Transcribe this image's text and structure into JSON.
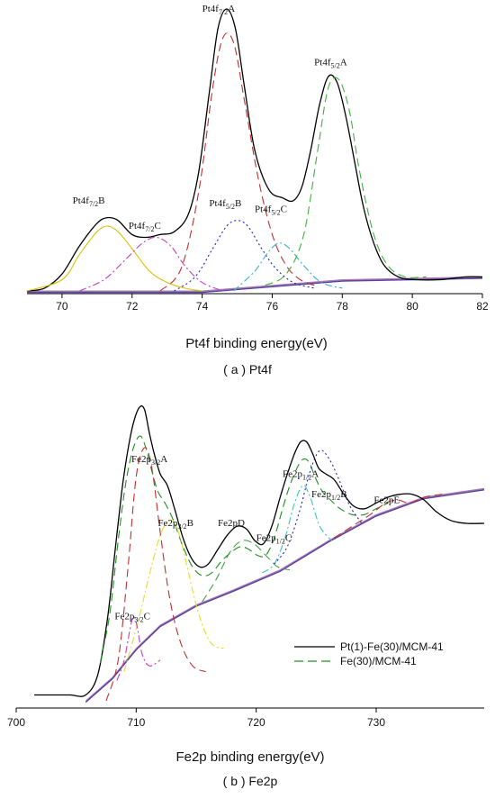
{
  "chart_data": [
    {
      "id": "a",
      "type": "line",
      "title": "",
      "caption": "( a ) Pt4f",
      "xlabel": "Pt4f binding energy(eV)",
      "ylabel": "",
      "xlim": [
        69,
        82
      ],
      "ylim": [
        0,
        1
      ],
      "xticks": [
        "70",
        "72",
        "74",
        "76",
        "78",
        "80",
        "82"
      ],
      "xtick_values": [
        70,
        72,
        74,
        76,
        78,
        80,
        82
      ],
      "grid": false,
      "background": [
        [
          69,
          0.0
        ],
        [
          74,
          0.0
        ],
        [
          76,
          0.02
        ],
        [
          78,
          0.04
        ],
        [
          82,
          0.05
        ]
      ],
      "series": [
        {
          "style": "solid",
          "color": "#000000",
          "x": [
            69.0,
            69.5,
            70.0,
            70.5,
            71.0,
            71.3,
            71.6,
            72.0,
            72.4,
            72.8,
            73.2,
            73.6,
            73.9,
            74.2,
            74.45,
            74.7,
            74.95,
            75.2,
            75.5,
            75.9,
            76.3,
            76.6,
            76.85,
            77.1,
            77.35,
            77.6,
            77.85,
            78.1,
            78.35,
            78.6,
            78.9,
            79.2,
            79.6,
            80.1,
            80.8,
            81.5,
            82.0
          ],
          "values": [
            0.0,
            0.01,
            0.06,
            0.16,
            0.24,
            0.26,
            0.25,
            0.2,
            0.19,
            0.2,
            0.21,
            0.27,
            0.42,
            0.7,
            0.93,
            1.0,
            0.93,
            0.73,
            0.5,
            0.36,
            0.33,
            0.32,
            0.37,
            0.5,
            0.66,
            0.76,
            0.74,
            0.62,
            0.46,
            0.3,
            0.17,
            0.09,
            0.05,
            0.04,
            0.04,
            0.05,
            0.05
          ]
        },
        {
          "style": "solid",
          "color": "#d6c200",
          "x": [
            69.0,
            70.0,
            70.5,
            71.0,
            71.3,
            71.6,
            72.0,
            72.5,
            73.0,
            73.5,
            74.0
          ],
          "values": [
            0.0,
            0.04,
            0.13,
            0.21,
            0.23,
            0.21,
            0.15,
            0.07,
            0.03,
            0.01,
            0.0
          ]
        },
        {
          "style": "dashdot",
          "color": "#c040c0",
          "x": [
            70.5,
            71.2,
            71.8,
            72.3,
            72.7,
            73.1,
            73.5,
            74.0,
            74.6
          ],
          "values": [
            0.0,
            0.04,
            0.11,
            0.17,
            0.19,
            0.16,
            0.09,
            0.03,
            0.0
          ]
        },
        {
          "style": "dashed",
          "color": "#c03030",
          "x": [
            72.8,
            73.4,
            73.9,
            74.3,
            74.6,
            74.9,
            75.2,
            75.6,
            76.0,
            76.4,
            76.8,
            77.2
          ],
          "values": [
            0.0,
            0.08,
            0.35,
            0.72,
            0.9,
            0.88,
            0.68,
            0.4,
            0.2,
            0.09,
            0.04,
            0.02
          ]
        },
        {
          "style": "dotted",
          "color": "#2020c0",
          "x": [
            73.2,
            73.8,
            74.3,
            74.7,
            75.0,
            75.3,
            75.7,
            76.1,
            76.6,
            77.2
          ],
          "values": [
            0.0,
            0.05,
            0.15,
            0.23,
            0.25,
            0.23,
            0.15,
            0.08,
            0.03,
            0.01
          ]
        },
        {
          "style": "dashdot",
          "color": "#40b0c0",
          "x": [
            74.9,
            75.5,
            75.9,
            76.2,
            76.5,
            76.9,
            77.4,
            78.0
          ],
          "values": [
            0.0,
            0.07,
            0.14,
            0.17,
            0.15,
            0.09,
            0.03,
            0.01
          ]
        },
        {
          "style": "dashed",
          "color": "#40b040",
          "x": [
            75.8,
            76.4,
            76.9,
            77.3,
            77.6,
            77.9,
            78.2,
            78.5,
            78.9,
            79.3,
            79.8,
            80.4
          ],
          "values": [
            0.02,
            0.06,
            0.2,
            0.5,
            0.72,
            0.75,
            0.64,
            0.42,
            0.2,
            0.09,
            0.05,
            0.05
          ]
        }
      ],
      "peak_labels": [
        {
          "base": "Pt4f",
          "sub": "7/2",
          "suffix": "A",
          "x": 74.0,
          "y": 0.99
        },
        {
          "base": "Pt4f",
          "sub": "5/2",
          "suffix": "A",
          "x": 77.2,
          "y": 0.8
        },
        {
          "base": "Pt4f",
          "sub": "7/2",
          "suffix": "B",
          "x": 70.3,
          "y": 0.31
        },
        {
          "base": "Pt4f",
          "sub": "7/2",
          "suffix": "C",
          "x": 71.9,
          "y": 0.22
        },
        {
          "base": "Pt4f",
          "sub": "5/2",
          "suffix": "B",
          "x": 74.2,
          "y": 0.3
        },
        {
          "base": "Pt4f",
          "sub": "5/2",
          "suffix": "C",
          "x": 75.5,
          "y": 0.28
        }
      ]
    },
    {
      "id": "b",
      "type": "line",
      "title": "",
      "caption": "( b ) Fe2p",
      "xlabel": "Fe2p binding energy(eV)",
      "ylabel": "",
      "xlim": [
        700,
        739
      ],
      "ylim": [
        0,
        1
      ],
      "xticks": [
        "700",
        "710",
        "720",
        "730"
      ],
      "xtick_values": [
        700,
        710,
        720,
        730
      ],
      "grid": false,
      "legend_position": "right",
      "legend": [
        {
          "name": "Pt(1)-Fe(30)/MCM-41",
          "style": "solid",
          "color": "#000000"
        },
        {
          "name": "Fe(30)/MCM-41",
          "style": "dashed",
          "color": "#209020"
        }
      ],
      "background": [
        [
          705.8,
          0.0
        ],
        [
          708,
          0.08
        ],
        [
          710,
          0.18
        ],
        [
          712,
          0.26
        ],
        [
          715,
          0.33
        ],
        [
          718,
          0.38
        ],
        [
          722,
          0.45
        ],
        [
          726,
          0.55
        ],
        [
          730,
          0.64
        ],
        [
          734,
          0.7
        ],
        [
          739,
          0.73
        ]
      ],
      "series": [
        {
          "style": "solid",
          "color": "#000000",
          "x": [
            701.5,
            703.0,
            704.5,
            705.8,
            706.8,
            707.6,
            708.2,
            708.8,
            709.3,
            709.8,
            710.3,
            710.7,
            711.1,
            711.5,
            712.0,
            712.6,
            713.2,
            713.9,
            714.6,
            715.3,
            716.0,
            716.8,
            717.6,
            718.4,
            719.2,
            719.9,
            720.6,
            721.3,
            722.0,
            722.6,
            723.2,
            723.7,
            724.2,
            724.7,
            725.2,
            725.8,
            726.5,
            727.3,
            728.1,
            729.0,
            730.0,
            731.0,
            732.0,
            733.0,
            734.0,
            735.0,
            736.2,
            737.5,
            739.0
          ],
          "values": [
            0.02,
            0.02,
            0.02,
            0.02,
            0.09,
            0.28,
            0.5,
            0.72,
            0.86,
            0.96,
            1.01,
            1.0,
            0.92,
            0.85,
            0.78,
            0.74,
            0.66,
            0.56,
            0.49,
            0.46,
            0.47,
            0.52,
            0.57,
            0.6,
            0.59,
            0.55,
            0.54,
            0.6,
            0.7,
            0.78,
            0.85,
            0.89,
            0.89,
            0.85,
            0.8,
            0.78,
            0.76,
            0.71,
            0.67,
            0.66,
            0.68,
            0.7,
            0.71,
            0.71,
            0.69,
            0.65,
            0.62,
            0.61,
            0.61
          ]
        },
        {
          "style": "dashed",
          "color": "#209020",
          "x": [
            707.0,
            707.8,
            708.5,
            709.1,
            709.7,
            710.3,
            710.8,
            711.3,
            711.8,
            712.4,
            713.1,
            713.9,
            714.7,
            715.5,
            716.3,
            717.1,
            717.9,
            718.7,
            719.4,
            720.1,
            720.8,
            721.5,
            722.2,
            722.8,
            723.4,
            723.9,
            724.4,
            724.9,
            725.5,
            726.2,
            727.0,
            728.0,
            729.0,
            730.0,
            731.0
          ],
          "values": [
            0.13,
            0.3,
            0.55,
            0.74,
            0.86,
            0.91,
            0.87,
            0.79,
            0.72,
            0.68,
            0.62,
            0.53,
            0.46,
            0.43,
            0.44,
            0.48,
            0.51,
            0.53,
            0.52,
            0.5,
            0.5,
            0.56,
            0.66,
            0.74,
            0.8,
            0.83,
            0.82,
            0.77,
            0.72,
            0.69,
            0.66,
            0.64,
            0.64,
            0.66,
            0.68
          ]
        },
        {
          "style": "dashed",
          "color": "#c03030",
          "x": [
            707.5,
            708.5,
            709.3,
            710.0,
            710.7,
            711.3,
            712.0,
            712.8,
            713.7,
            714.7,
            715.8
          ],
          "values": [
            0.0,
            0.14,
            0.45,
            0.77,
            0.87,
            0.8,
            0.58,
            0.35,
            0.2,
            0.12,
            0.1
          ]
        },
        {
          "style": "dashdot",
          "color": "#e0e020",
          "x": [
            709.0,
            710.2,
            711.2,
            712.1,
            712.9,
            713.6,
            714.3,
            715.2,
            716.2,
            717.3
          ],
          "values": [
            0.1,
            0.28,
            0.45,
            0.58,
            0.62,
            0.57,
            0.45,
            0.3,
            0.2,
            0.18
          ]
        },
        {
          "style": "dashdot",
          "color": "#c040c0",
          "x": [
            708.4,
            709.0,
            709.5,
            709.8,
            710.1,
            710.5,
            711.1,
            712.0
          ],
          "values": [
            0.07,
            0.14,
            0.25,
            0.29,
            0.25,
            0.16,
            0.12,
            0.14
          ]
        },
        {
          "style": "dashed",
          "color": "#40a040",
          "x": [
            715.5,
            716.7,
            717.8,
            718.8,
            719.8,
            720.8,
            721.8,
            722.8
          ],
          "values": [
            0.34,
            0.42,
            0.51,
            0.55,
            0.54,
            0.5,
            0.46,
            0.45
          ]
        },
        {
          "style": "dashdot",
          "color": "#40c0c0",
          "x": [
            720.5,
            721.5,
            722.4,
            723.2,
            723.9,
            724.5,
            725.3,
            726.3
          ],
          "values": [
            0.44,
            0.47,
            0.56,
            0.68,
            0.74,
            0.7,
            0.6,
            0.55
          ]
        },
        {
          "style": "dotted",
          "color": "#2020c0",
          "x": [
            721.5,
            722.6,
            723.6,
            724.5,
            725.3,
            726.1,
            726.9,
            727.8,
            728.8
          ],
          "values": [
            0.47,
            0.53,
            0.65,
            0.79,
            0.86,
            0.83,
            0.76,
            0.67,
            0.61
          ]
        },
        {
          "style": "dashed",
          "color": "#c03030",
          "x": [
            726.5,
            728.0,
            729.5,
            730.8,
            731.8,
            732.8,
            734.0,
            735.5
          ],
          "values": [
            0.56,
            0.6,
            0.64,
            0.68,
            0.69,
            0.68,
            0.7,
            0.71
          ]
        }
      ],
      "peak_labels": [
        {
          "base": "Fe2p",
          "sub": "3/2",
          "suffix": "A",
          "x": 709.6,
          "y": 0.82
        },
        {
          "base": "Fe2p",
          "sub": "3/2",
          "suffix": "B",
          "x": 711.8,
          "y": 0.6
        },
        {
          "base": "Fe2p",
          "sub": "3/2",
          "suffix": "C",
          "x": 708.2,
          "y": 0.28
        },
        {
          "base": "Fe2pD",
          "sub": "",
          "suffix": "",
          "x": 716.8,
          "y": 0.6
        },
        {
          "base": "Fe2p",
          "sub": "1/2",
          "suffix": "A",
          "x": 722.2,
          "y": 0.77
        },
        {
          "base": "Fe2p",
          "sub": "1/2",
          "suffix": "B",
          "x": 724.6,
          "y": 0.7
        },
        {
          "base": "Fe2p",
          "sub": "1/2",
          "suffix": "C",
          "x": 720.0,
          "y": 0.55
        },
        {
          "base": "Fe2pE",
          "sub": "",
          "suffix": "",
          "x": 729.8,
          "y": 0.68
        }
      ]
    }
  ]
}
